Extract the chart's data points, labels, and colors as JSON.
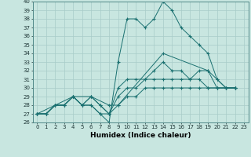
{
  "title": "",
  "xlabel": "Humidex (Indice chaleur)",
  "background_color": "#c8e6e0",
  "grid_color": "#a8ccc8",
  "line_color": "#1a7070",
  "xlim": [
    -0.5,
    23.5
  ],
  "ylim": [
    26,
    40
  ],
  "yticks": [
    26,
    27,
    28,
    29,
    30,
    31,
    32,
    33,
    34,
    35,
    36,
    37,
    38,
    39,
    40
  ],
  "xticks": [
    0,
    1,
    2,
    3,
    4,
    5,
    6,
    7,
    8,
    9,
    10,
    11,
    12,
    13,
    14,
    15,
    16,
    17,
    18,
    19,
    20,
    21,
    22,
    23
  ],
  "lines": [
    [
      0,
      27,
      1,
      27,
      2,
      28,
      3,
      28,
      4,
      29,
      5,
      28,
      6,
      28,
      7,
      27,
      8,
      26,
      9,
      33,
      10,
      38,
      11,
      38,
      12,
      37,
      13,
      38,
      14,
      40,
      15,
      39,
      16,
      37,
      17,
      36,
      18,
      35,
      19,
      34,
      20,
      31,
      21,
      30,
      22,
      30
    ],
    [
      0,
      27,
      1,
      27,
      2,
      28,
      3,
      28,
      4,
      29,
      5,
      28,
      6,
      29,
      7,
      28,
      8,
      27,
      9,
      30,
      10,
      31,
      11,
      31,
      12,
      31,
      13,
      32,
      14,
      33,
      15,
      32,
      16,
      32,
      17,
      31,
      18,
      32,
      19,
      32,
      20,
      30,
      21,
      30,
      22,
      30
    ],
    [
      0,
      27,
      1,
      27,
      2,
      28,
      3,
      28,
      4,
      29,
      5,
      28,
      6,
      29,
      7,
      28,
      8,
      27,
      9,
      29,
      10,
      30,
      11,
      30,
      12,
      31,
      13,
      31,
      14,
      31,
      15,
      31,
      16,
      31,
      17,
      31,
      18,
      31,
      19,
      30,
      20,
      30,
      21,
      30,
      22,
      30
    ],
    [
      0,
      27,
      1,
      27,
      2,
      28,
      3,
      28,
      4,
      29,
      5,
      28,
      6,
      28,
      7,
      27,
      8,
      27,
      9,
      28,
      10,
      29,
      11,
      29,
      12,
      30,
      13,
      30,
      14,
      30,
      15,
      30,
      16,
      30,
      17,
      30,
      18,
      30,
      19,
      30,
      20,
      30,
      21,
      30,
      22,
      30
    ],
    [
      0,
      27,
      2,
      28,
      4,
      29,
      6,
      29,
      8,
      28,
      9,
      28,
      14,
      34,
      19,
      32,
      20,
      31,
      21,
      30,
      22,
      30
    ]
  ],
  "font_size_ticks": 5,
  "font_size_xlabel": 6.5
}
